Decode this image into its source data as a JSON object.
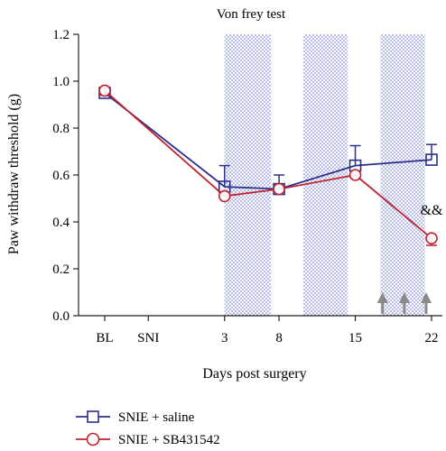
{
  "chart_data": {
    "type": "line",
    "title": "Von frey test",
    "xlabel": "Days post surgery",
    "ylabel": "Paw withdraw threshold (g)",
    "x_categories": [
      "BL",
      "SNI",
      "3",
      "8",
      "15",
      "22"
    ],
    "x_positions": [
      -8,
      -4,
      3,
      8,
      15,
      22
    ],
    "ylim": [
      0,
      1.2
    ],
    "yticks": [
      "0.0",
      "0.2",
      "0.4",
      "0.6",
      "0.8",
      "1.0",
      "1.2"
    ],
    "yticks_values": [
      0,
      0.2,
      0.4,
      0.6,
      0.8,
      1.0,
      1.2
    ],
    "shaded_periods": [
      [
        3,
        7.3
      ],
      [
        10.2,
        14.3
      ],
      [
        17.3,
        21.4
      ]
    ],
    "arrows_at_days": [
      17.5,
      19.5,
      21.5
    ],
    "grid": false,
    "legend_position": "bottom-left",
    "annotation": {
      "text": "&&",
      "x": 22,
      "y": 0.43
    },
    "series": [
      {
        "name": "SNIE + saline",
        "color": "#2b2f8a",
        "marker": "square",
        "x": [
          -8,
          3,
          8,
          15,
          22
        ],
        "values": [
          0.95,
          0.55,
          0.54,
          0.64,
          0.665
        ],
        "errors": [
          0.02,
          0.09,
          0.06,
          0.085,
          0.065
        ]
      },
      {
        "name": "SNIE + SB431542",
        "color": "#c0232e",
        "marker": "circle",
        "x": [
          -8,
          3,
          8,
          15,
          22
        ],
        "values": [
          0.96,
          0.51,
          0.54,
          0.6,
          0.33
        ],
        "errors": [
          0.02,
          0.0,
          0.0,
          0.0,
          0.03
        ]
      }
    ]
  }
}
